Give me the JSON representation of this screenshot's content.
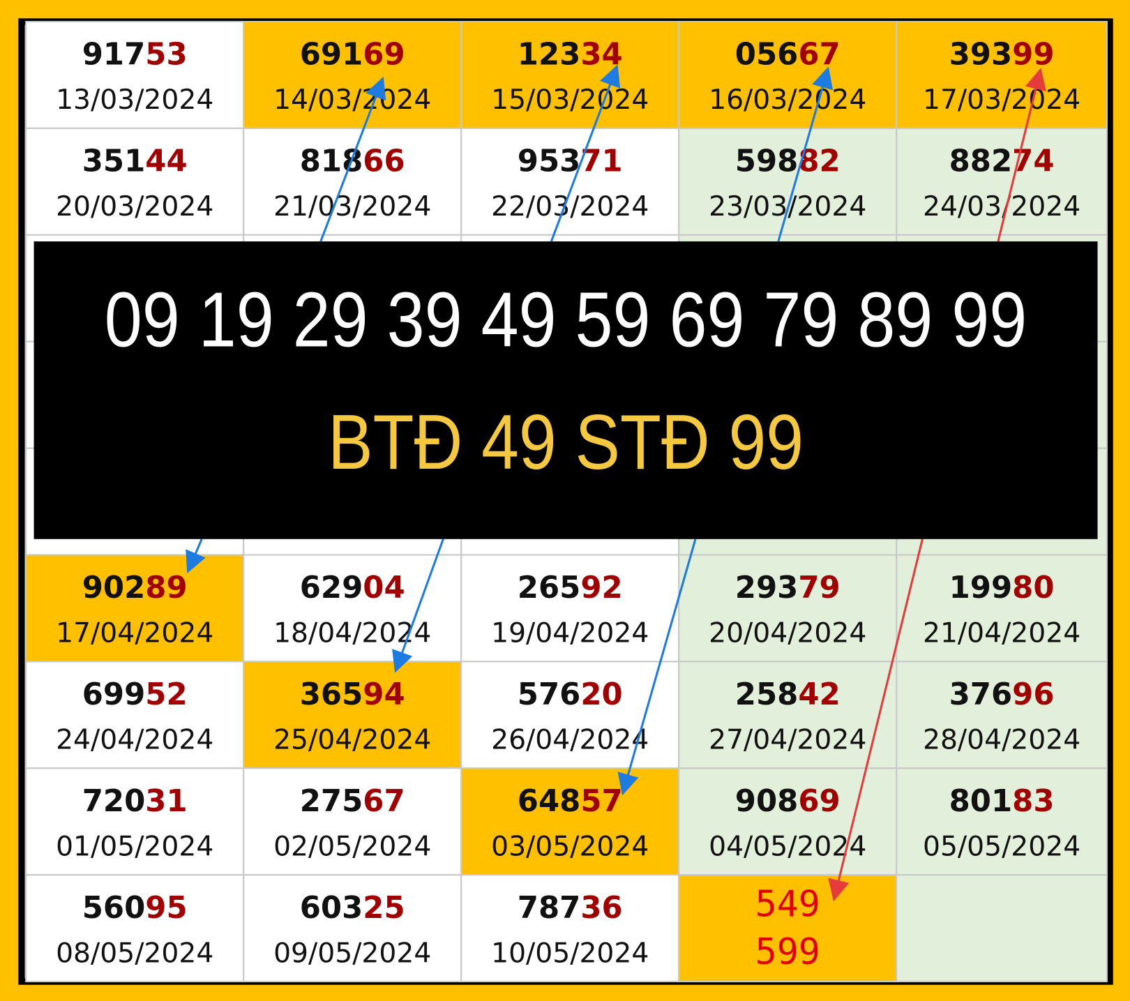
{
  "table": {
    "rows": [
      [
        {
          "head": "917",
          "tail": "53",
          "date": "13/03/2024"
        },
        {
          "head": "691",
          "tail": "69",
          "date": "14/03/2024",
          "highlight": true
        },
        {
          "head": "123",
          "tail": "34",
          "date": "15/03/2024",
          "highlight": true
        },
        {
          "head": "056",
          "tail": "67",
          "date": "16/03/2024",
          "highlight": true
        },
        {
          "head": "393",
          "tail": "99",
          "date": "17/03/2024",
          "highlight": true
        }
      ],
      [
        {
          "head": "351",
          "tail": "44",
          "date": "20/03/2024"
        },
        {
          "head": "818",
          "tail": "66",
          "date": "21/03/2024"
        },
        {
          "head": "953",
          "tail": "71",
          "date": "22/03/2024"
        },
        {
          "head": "598",
          "tail": "82",
          "date": "23/03/2024"
        },
        {
          "head": "882",
          "tail": "74",
          "date": "24/03/2024"
        }
      ],
      [
        {
          "head": "902",
          "tail": "89",
          "date": "17/04/2024",
          "highlight": true
        },
        {
          "head": "629",
          "tail": "04",
          "date": "18/04/2024"
        },
        {
          "head": "265",
          "tail": "92",
          "date": "19/04/2024"
        },
        {
          "head": "293",
          "tail": "79",
          "date": "20/04/2024"
        },
        {
          "head": "199",
          "tail": "80",
          "date": "21/04/2024"
        }
      ],
      [
        {
          "head": "699",
          "tail": "52",
          "date": "24/04/2024"
        },
        {
          "head": "365",
          "tail": "94",
          "date": "25/04/2024",
          "highlight": true
        },
        {
          "head": "576",
          "tail": "20",
          "date": "26/04/2024"
        },
        {
          "head": "258",
          "tail": "42",
          "date": "27/04/2024"
        },
        {
          "head": "376",
          "tail": "96",
          "date": "28/04/2024"
        }
      ],
      [
        {
          "head": "720",
          "tail": "31",
          "date": "01/05/2024"
        },
        {
          "head": "275",
          "tail": "67",
          "date": "02/05/2024"
        },
        {
          "head": "648",
          "tail": "57",
          "date": "03/05/2024",
          "highlight": true
        },
        {
          "head": "908",
          "tail": "69",
          "date": "04/05/2024"
        },
        {
          "head": "801",
          "tail": "83",
          "date": "05/05/2024"
        }
      ],
      [
        {
          "head": "560",
          "tail": "95",
          "date": "08/05/2024"
        },
        {
          "head": "603",
          "tail": "25",
          "date": "09/05/2024"
        },
        {
          "head": "787",
          "tail": "36",
          "date": "10/05/2024"
        },
        {
          "lines": [
            "549",
            "599"
          ],
          "highlight": true
        }
      ]
    ]
  },
  "banner": {
    "line1": "09 19 29 39 49 59 69 79 89 99",
    "line2": "BTĐ 49 STĐ 99"
  }
}
